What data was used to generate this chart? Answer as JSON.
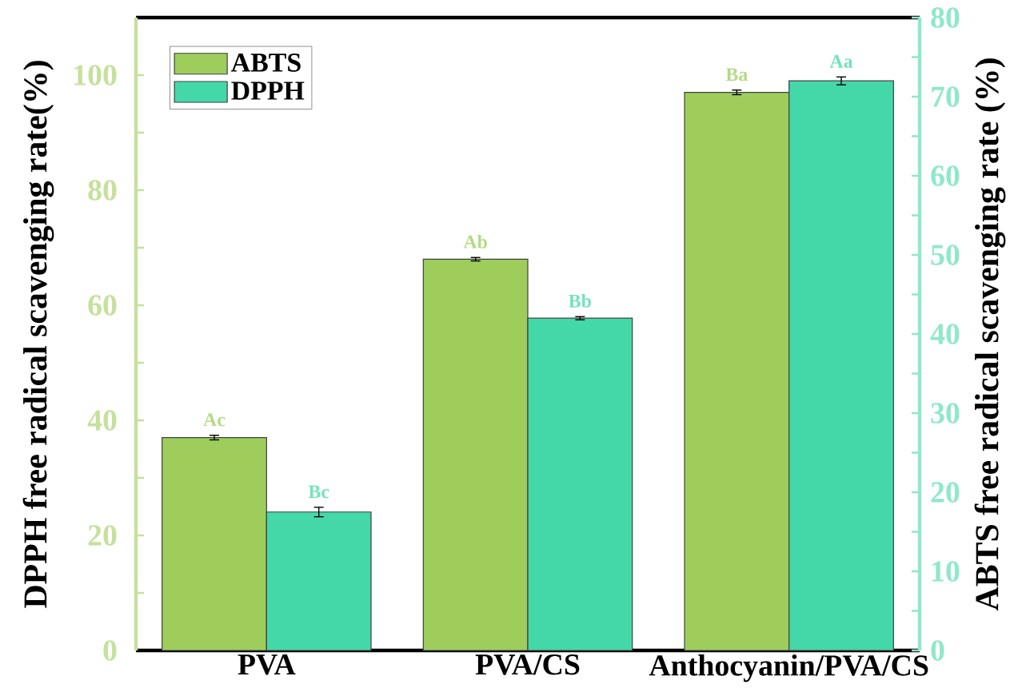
{
  "chart_data": {
    "type": "bar",
    "categories": [
      "PVA",
      "PVA/CS",
      "Anthocyanin/PVA/CS"
    ],
    "ylabel": "DPPH free radical scavenging rate(%)",
    "y2label": "ABTS free radical scavenging rate (%)",
    "ylim": [
      0,
      110
    ],
    "yticks": [
      0,
      {
        "value": 10,
        "label": null
      },
      20,
      {
        "value": 30,
        "label": null
      },
      40,
      {
        "value": 50,
        "label": null
      },
      60,
      {
        "value": 70,
        "label": null
      },
      80,
      {
        "value": 90,
        "label": null
      },
      100
    ],
    "y2lim": [
      0,
      80
    ],
    "y2ticks": [
      0,
      {
        "value": 5,
        "label": null
      },
      10,
      {
        "value": 15,
        "label": null
      },
      20,
      {
        "value": 25,
        "label": null
      },
      30,
      {
        "value": 35,
        "label": null
      },
      40,
      {
        "value": 45,
        "label": null
      },
      50,
      {
        "value": 55,
        "label": null
      },
      60,
      {
        "value": 65,
        "label": null
      },
      70,
      {
        "value": 75,
        "label": null
      },
      80
    ],
    "legend": "top left",
    "series": [
      {
        "name": "ABTS",
        "color": "#9ecd5c",
        "values": [
          37,
          68,
          97
        ],
        "errors": [
          0.4,
          0.3,
          0.4
        ],
        "value_labels": [
          "Ac",
          "Ab",
          "Ba"
        ]
      },
      {
        "name": "DPPH",
        "color": "#44d8a8",
        "axis": "y2",
        "values": [
          17.5,
          42,
          72
        ],
        "errors": [
          0.6,
          0.2,
          0.5
        ],
        "value_labels": [
          "Bc",
          "Bb",
          "Aa"
        ]
      }
    ]
  }
}
